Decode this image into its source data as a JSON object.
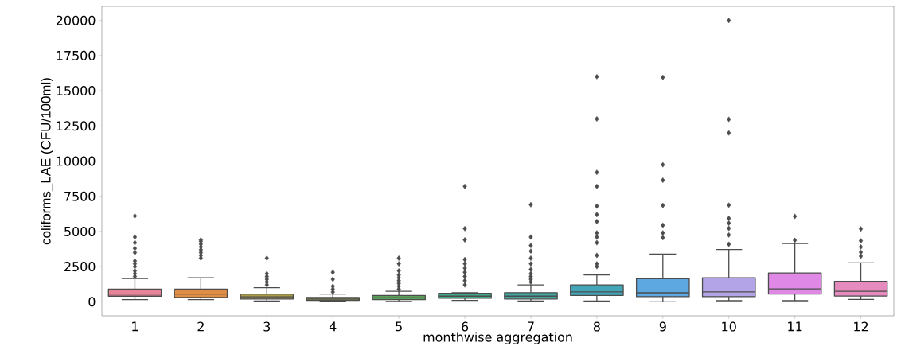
{
  "chart_data": {
    "type": "box",
    "xlabel": "monthwise aggregation",
    "ylabel": "coliforms_LAE  (CFU/100ml)",
    "categories": [
      "1",
      "2",
      "3",
      "4",
      "5",
      "6",
      "7",
      "8",
      "9",
      "10",
      "11",
      "12"
    ],
    "colors": [
      "#e8849a",
      "#e08e45",
      "#a89a4a",
      "#8a8f4c",
      "#5aa05a",
      "#3fa88a",
      "#3fa6a0",
      "#43a6b8",
      "#5da8e0",
      "#b3a4e8",
      "#df88e6",
      "#e58bbd"
    ],
    "boxes": [
      {
        "low": 150,
        "q1": 400,
        "median": 550,
        "q3": 900,
        "high": 1650,
        "outliers": [
          1800,
          2000,
          2200,
          2500,
          2700,
          2900,
          3500,
          3800,
          4200,
          4600,
          6100
        ]
      },
      {
        "low": 150,
        "q1": 300,
        "median": 550,
        "q3": 900,
        "high": 1700,
        "outliers": [
          3100,
          3300,
          3500,
          3700,
          3900,
          4100,
          4300,
          4400
        ]
      },
      {
        "low": 50,
        "q1": 200,
        "median": 350,
        "q3": 550,
        "high": 1000,
        "outliers": [
          1200,
          1400,
          1600,
          1800,
          2000,
          3100
        ]
      },
      {
        "low": 50,
        "q1": 100,
        "median": 200,
        "q3": 300,
        "high": 550,
        "outliers": [
          700,
          900,
          1100,
          1600,
          2100
        ]
      },
      {
        "low": 30,
        "q1": 150,
        "median": 280,
        "q3": 450,
        "high": 750,
        "outliers": [
          900,
          1100,
          1300,
          1500,
          1700,
          1900,
          2200,
          2700,
          3100
        ]
      },
      {
        "low": 100,
        "q1": 250,
        "median": 400,
        "q3": 600,
        "high": 650,
        "outliers": [
          1200,
          1500,
          1800,
          2100,
          2400,
          2700,
          3000,
          4400,
          5200,
          8200
        ]
      },
      {
        "low": 50,
        "q1": 200,
        "median": 400,
        "q3": 650,
        "high": 1200,
        "outliers": [
          1400,
          1600,
          1800,
          2000,
          2300,
          2700,
          3100,
          3600,
          4000,
          4600,
          6900
        ]
      },
      {
        "low": 50,
        "q1": 450,
        "median": 700,
        "q3": 1200,
        "high": 1900,
        "outliers": [
          2500,
          2700,
          3300,
          4200,
          4600,
          4900,
          5700,
          6200,
          6800,
          8200,
          9200,
          13000,
          16000
        ]
      },
      {
        "low": 0,
        "q1": 360,
        "median": 640,
        "q3": 1640,
        "high": 3390,
        "outliers": [
          4560,
          4900,
          5440,
          6850,
          8640,
          9740,
          15950
        ]
      },
      {
        "low": 75,
        "q1": 360,
        "median": 700,
        "q3": 1700,
        "high": 3710,
        "outliers": [
          4090,
          4750,
          5220,
          5590,
          5930,
          6870,
          12000,
          12970,
          20000
        ]
      },
      {
        "low": 75,
        "q1": 550,
        "median": 920,
        "q3": 2050,
        "high": 4140,
        "outliers": [
          4370,
          6070
        ]
      },
      {
        "low": 170,
        "q1": 410,
        "median": 750,
        "q3": 1450,
        "high": 2770,
        "outliers": [
          3240,
          3520,
          3900,
          4330,
          5180
        ]
      }
    ],
    "marker": "diamond",
    "ylim": [
      -1000,
      21000
    ],
    "yticks": [
      0,
      2500,
      5000,
      7500,
      10000,
      12500,
      15000,
      17500,
      20000
    ]
  }
}
